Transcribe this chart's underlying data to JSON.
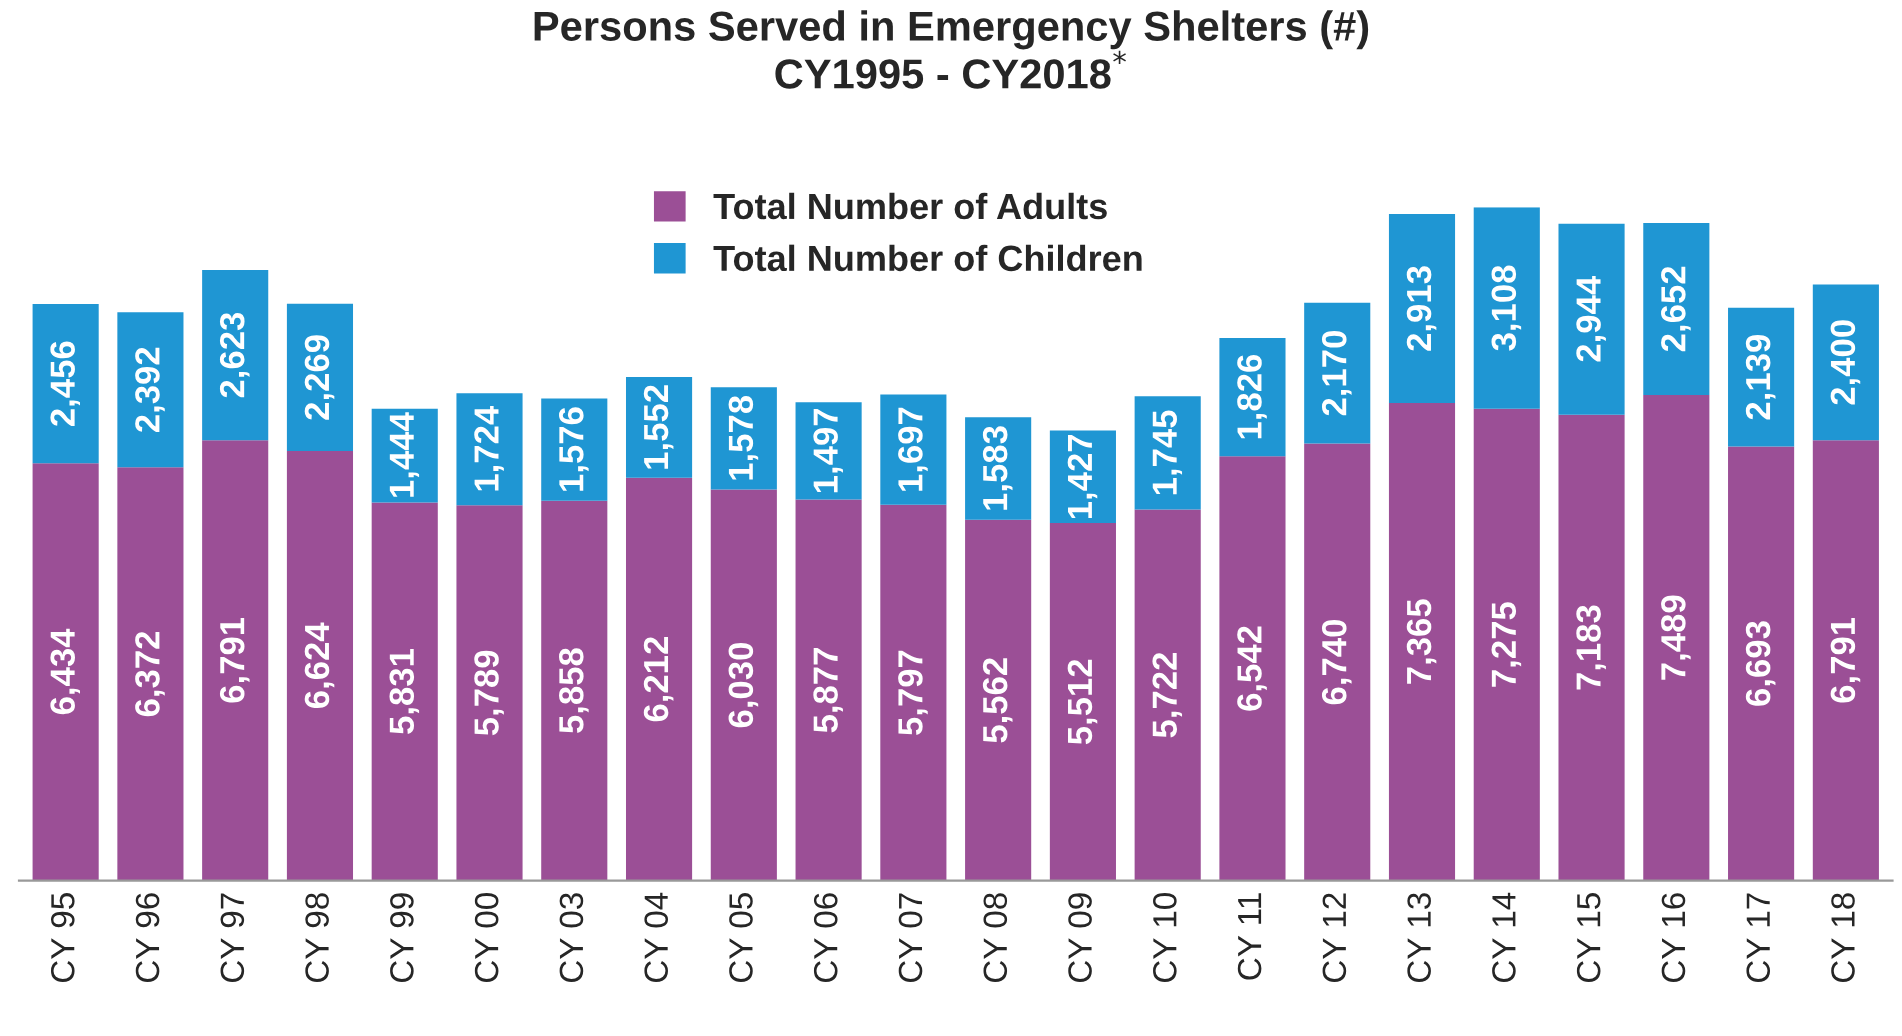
{
  "chart_data": {
    "type": "bar",
    "title": "Persons Served in Emergency Shelters (#)\nCY1995 - CY2018$^{*}$",
    "categories": [
      "CY 95",
      "CY 96",
      "CY 97",
      "CY 98",
      "CY 99",
      "CY 00",
      "CY 03",
      "CY 04",
      "CY 05",
      "CY 06",
      "CY 07",
      "CY 08",
      "CY 09",
      "CY 10",
      "CY 11",
      "CY 12",
      "CY 13",
      "CY 14",
      "CY 15",
      "CY 16",
      "CY 17",
      "CY 18"
    ],
    "stacked": true,
    "legend": "top",
    "grid": false,
    "series": [
      {
        "name": "Total Number of Adults",
        "color": "#9b4f96",
        "values": [
          6434,
          6372,
          6791,
          6624,
          5831,
          5789,
          5858,
          6212,
          6030,
          5877,
          5797,
          5562,
          5512,
          5722,
          6542,
          6740,
          7365,
          7275,
          7183,
          7489,
          6693,
          6791
        ],
        "value_labels": [
          "6,434",
          "6,372",
          "6,791",
          "6,624",
          "5,831",
          "5,789",
          "5,858",
          "6,212",
          "6,030",
          "5,877",
          "5,797",
          "5,562",
          "5,512",
          "5,722",
          "6,542",
          "6,740",
          "7,365",
          "7,275",
          "7,183",
          "7,489",
          "6,693",
          "6,791"
        ]
      },
      {
        "name": "Total Number of Children",
        "color": "#1f96d3",
        "values": [
          2456,
          2392,
          2623,
          2269,
          1444,
          1724,
          1576,
          1552,
          1578,
          1497,
          1697,
          1583,
          1427,
          1745,
          1826,
          2170,
          2913,
          3108,
          2944,
          2652,
          2139,
          2400
        ],
        "value_labels": [
          "2,456",
          "2,392",
          "2,623",
          "2,269",
          "1,444",
          "1,724",
          "1,576",
          "1,552",
          "1,578",
          "1,497",
          "1,697",
          "1,583",
          "1,427",
          "1,745",
          "1,826",
          "2,170",
          "2,913",
          "3,108",
          "2,944",
          "2,652",
          "2,139",
          "2,400"
        ]
      }
    ]
  }
}
